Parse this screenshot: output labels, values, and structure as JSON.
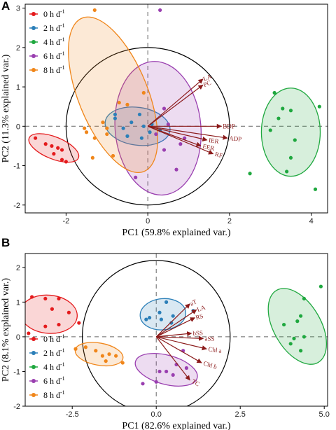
{
  "colors": {
    "0h": "#e41a1c",
    "2h": "#2b7fb8",
    "4h": "#1fa83f",
    "6h": "#9a3fb0",
    "8h": "#f0861a",
    "arrow": "#8b1a1a"
  },
  "chart_data": [
    {
      "type": "scatter",
      "panel_label": "A",
      "xlabel": "PC1 (59.8% explained var.)",
      "ylabel": "PC2 (11.3% explained var.)",
      "xlim": [
        -3.0,
        4.4
      ],
      "ylim": [
        -2.2,
        3.1
      ],
      "xticks": [
        -2,
        0,
        2,
        4
      ],
      "yticks": [
        -2,
        -1,
        0,
        1,
        2,
        3
      ],
      "xtick_labels": [
        "-2",
        "0",
        "2",
        "4"
      ],
      "ytick_labels": [
        "-2",
        "-1",
        "0",
        "1",
        "2",
        "3"
      ],
      "legend_position": "top-left",
      "circle": {
        "cx": 0,
        "cy": 0,
        "r": 2.0
      },
      "series": [
        {
          "name": "0 h d",
          "sup": "-1",
          "color_key": "0h",
          "points": [
            [
              -2.75,
              -0.3
            ],
            [
              -2.5,
              -0.45
            ],
            [
              -2.35,
              -0.5
            ],
            [
              -2.2,
              -0.55
            ],
            [
              -2.1,
              -0.6
            ],
            [
              -2.3,
              -0.7
            ],
            [
              -2.1,
              -0.85
            ],
            [
              -2.0,
              -0.9
            ]
          ],
          "ellipse": {
            "cx": -2.3,
            "cy": -0.55,
            "rx": 0.65,
            "ry": 0.28,
            "angle": -22
          }
        },
        {
          "name": "2 h d",
          "sup": "-1",
          "color_key": "2h",
          "points": [
            [
              -0.8,
              0.3
            ],
            [
              -0.6,
              -0.05
            ],
            [
              -0.4,
              0.1
            ],
            [
              -0.2,
              0.3
            ],
            [
              -0.1,
              0.0
            ],
            [
              0.05,
              -0.15
            ],
            [
              -0.15,
              -0.3
            ],
            [
              0.1,
              0.05
            ],
            [
              -0.5,
              -0.25
            ],
            [
              0.3,
              -0.1
            ],
            [
              -0.8,
              0.2
            ]
          ],
          "ellipse": {
            "cx": -0.25,
            "cy": 0.0,
            "rx": 0.8,
            "ry": 0.48,
            "angle": -8
          }
        },
        {
          "name": "4 h d",
          "sup": "-1",
          "color_key": "4h",
          "points": [
            [
              3.1,
              0.85
            ],
            [
              3.3,
              0.45
            ],
            [
              3.5,
              0.4
            ],
            [
              3.0,
              -0.1
            ],
            [
              3.2,
              0.2
            ],
            [
              3.6,
              -0.35
            ],
            [
              3.5,
              -0.8
            ],
            [
              3.4,
              -1.15
            ],
            [
              4.1,
              -1.6
            ],
            [
              4.2,
              0.5
            ],
            [
              2.5,
              -1.2
            ]
          ],
          "ellipse": {
            "cx": 3.5,
            "cy": -0.15,
            "rx": 0.72,
            "ry": 1.12,
            "angle": 0
          }
        },
        {
          "name": "6 h d",
          "sup": "-1",
          "color_key": "6h",
          "points": [
            [
              0.3,
              2.95
            ],
            [
              0.4,
              0.45
            ],
            [
              0.5,
              0.05
            ],
            [
              0.8,
              -0.45
            ],
            [
              0.9,
              -0.3
            ],
            [
              0.7,
              -1.1
            ],
            [
              -0.3,
              -1.3
            ],
            [
              0.2,
              -0.2
            ],
            [
              0.4,
              -0.6
            ]
          ],
          "ellipse": {
            "cx": 0.25,
            "cy": -0.05,
            "rx": 1.05,
            "ry": 1.7,
            "angle": 5
          }
        },
        {
          "name": "8 h d",
          "sup": "-1",
          "color_key": "8h",
          "points": [
            [
              -1.3,
              2.95
            ],
            [
              -1.0,
              -0.05
            ],
            [
              -1.1,
              0.1
            ],
            [
              -1.55,
              -0.05
            ],
            [
              -1.3,
              -0.3
            ],
            [
              -1.5,
              -0.15
            ],
            [
              -1.35,
              -0.8
            ],
            [
              -1.0,
              -0.2
            ],
            [
              -0.5,
              0.55
            ],
            [
              -0.7,
              0.6
            ],
            [
              -0.1,
              0.85
            ],
            [
              -0.85,
              -0.75
            ]
          ],
          "ellipse": {
            "cx": -0.85,
            "cy": 0.8,
            "rx": 0.85,
            "ry": 2.1,
            "angle": 22
          }
        }
      ],
      "loadings": [
        {
          "label": "LA",
          "x": 1.35,
          "y": 1.2
        },
        {
          "label": "PC",
          "x": 1.35,
          "y": 1.05
        },
        {
          "label": "BDP",
          "x": 1.8,
          "y": 0.0
        },
        {
          "label": "ADP",
          "x": 1.95,
          "y": -0.3
        },
        {
          "label": "IER",
          "x": 1.45,
          "y": -0.35
        },
        {
          "label": "EER",
          "x": 1.3,
          "y": -0.5
        },
        {
          "label": "RF",
          "x": 1.6,
          "y": -0.7
        }
      ]
    },
    {
      "type": "scatter",
      "panel_label": "B",
      "xlabel": "PC1 (82.6% explained var.)",
      "ylabel": "PC2 (8.1% explained var.)",
      "xlim": [
        -3.9,
        5.1
      ],
      "ylim": [
        -2.0,
        2.4
      ],
      "xticks": [
        -2.5,
        0.0,
        2.5,
        5.0
      ],
      "yticks": [
        -2,
        -1,
        0,
        1,
        2
      ],
      "xtick_labels": [
        "-2.5",
        "0.0",
        "2.5",
        "5.0"
      ],
      "ytick_labels": [
        "-2",
        "-1",
        "0",
        "1",
        "2"
      ],
      "legend_position": "bottom-left",
      "circle": {
        "cx": 0,
        "cy": 0,
        "r": 2.2
      },
      "series": [
        {
          "name": "0 h d",
          "sup": "-1",
          "color_key": "0h",
          "points": [
            [
              -3.7,
              1.15
            ],
            [
              -3.3,
              1.1
            ],
            [
              -2.9,
              1.1
            ],
            [
              -3.1,
              0.8
            ],
            [
              -2.6,
              0.7
            ],
            [
              -3.3,
              0.3
            ],
            [
              -2.9,
              0.35
            ],
            [
              -3.8,
              0.1
            ],
            [
              -2.3,
              0.4
            ]
          ],
          "ellipse": {
            "cx": -3.2,
            "cy": 0.65,
            "rx": 0.85,
            "ry": 0.55,
            "angle": -5
          }
        },
        {
          "name": "2 h d",
          "sup": "-1",
          "color_key": "2h",
          "points": [
            [
              0.3,
              1.0
            ],
            [
              0.1,
              0.7
            ],
            [
              -0.2,
              0.55
            ],
            [
              0.5,
              0.6
            ],
            [
              0.15,
              0.5
            ],
            [
              -0.3,
              0.5
            ],
            [
              0.45,
              0.4
            ],
            [
              1.1,
              0.75
            ]
          ],
          "ellipse": {
            "cx": 0.2,
            "cy": 0.65,
            "rx": 0.68,
            "ry": 0.45,
            "angle": 5
          }
        },
        {
          "name": "4 h d",
          "sup": "-1",
          "color_key": "4h",
          "points": [
            [
              4.9,
              1.45
            ],
            [
              4.4,
              1.1
            ],
            [
              4.3,
              0.6
            ],
            [
              4.2,
              0.45
            ],
            [
              4.4,
              0.0
            ],
            [
              4.1,
              -0.05
            ],
            [
              4.3,
              -0.4
            ],
            [
              3.8,
              0.35
            ],
            [
              4.0,
              -0.2
            ]
          ],
          "ellipse": {
            "cx": 4.2,
            "cy": 0.3,
            "rx": 0.7,
            "ry": 1.2,
            "angle": 30
          }
        },
        {
          "name": "6 h d",
          "sup": "-1",
          "color_key": "6h",
          "points": [
            [
              0.8,
              -0.4
            ],
            [
              0.6,
              -0.8
            ],
            [
              0.9,
              -0.9
            ],
            [
              0.3,
              -1.0
            ],
            [
              0.0,
              -1.3
            ],
            [
              -0.4,
              -1.35
            ],
            [
              0.5,
              -1.1
            ],
            [
              0.1,
              -1.0
            ]
          ],
          "ellipse": {
            "cx": 0.3,
            "cy": -0.95,
            "rx": 0.95,
            "ry": 0.42,
            "angle": -15
          }
        },
        {
          "name": "8 h d",
          "sup": "-1",
          "color_key": "8h",
          "points": [
            [
              -2.1,
              -0.3
            ],
            [
              -1.8,
              -0.4
            ],
            [
              -1.6,
              -0.55
            ],
            [
              -1.4,
              -0.5
            ],
            [
              -1.5,
              -0.7
            ],
            [
              -1.2,
              -0.55
            ],
            [
              -1.0,
              -0.75
            ],
            [
              -2.4,
              -0.35
            ]
          ],
          "ellipse": {
            "cx": -1.7,
            "cy": -0.5,
            "rx": 0.72,
            "ry": 0.32,
            "angle": -10
          }
        }
      ],
      "loadings": [
        {
          "label": "aT",
          "x": 1.0,
          "y": 0.95
        },
        {
          "label": "LA",
          "x": 1.2,
          "y": 0.78
        },
        {
          "label": "RS",
          "x": 1.15,
          "y": 0.55
        },
        {
          "label": "bSS",
          "x": 1.05,
          "y": 0.1
        },
        {
          "label": "aSS",
          "x": 1.4,
          "y": -0.05
        },
        {
          "label": "Chl a",
          "x": 1.5,
          "y": -0.35
        },
        {
          "label": "Chl b",
          "x": 1.35,
          "y": -0.75
        },
        {
          "label": "TC",
          "x": 1.0,
          "y": -1.25
        }
      ]
    }
  ]
}
